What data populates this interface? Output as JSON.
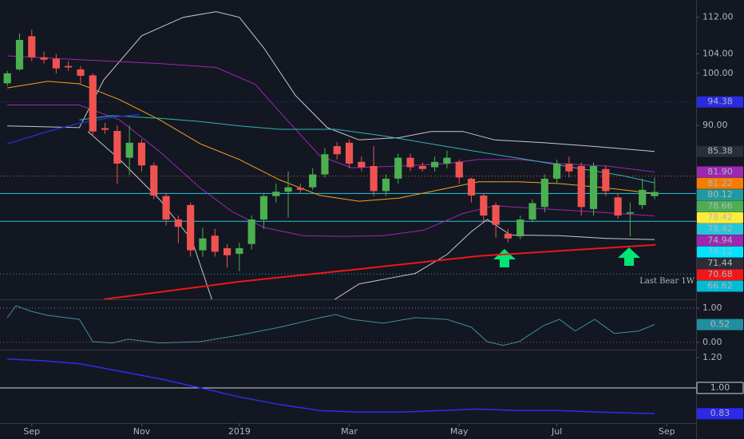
{
  "chart_data": [
    {
      "type": "candlestick",
      "log": true,
      "ylim": [
        63.3,
        116.0
      ],
      "yticks": [
        {
          "value": 112,
          "label": "112.00"
        },
        {
          "value": 104,
          "label": "104.00"
        },
        {
          "value": 100,
          "label": "100.00"
        },
        {
          "value": 90,
          "label": "90.00"
        }
      ],
      "xlim": [
        -0.6,
        56.4
      ],
      "xticks": [
        {
          "value": 2,
          "label": "Sep"
        },
        {
          "value": 11,
          "label": "Nov"
        },
        {
          "value": 19,
          "label": "2019"
        },
        {
          "value": 28,
          "label": "Mar"
        },
        {
          "value": 37,
          "label": "May"
        },
        {
          "value": 45,
          "label": "Jul"
        },
        {
          "value": 54,
          "label": "Sep"
        }
      ],
      "up_color": "#4caf50",
      "down_color": "#ef5350",
      "open": [
        98,
        100.8,
        107.8,
        103.3,
        103,
        101.5,
        100.8,
        99.6,
        89.5,
        89,
        84.3,
        86.9,
        83,
        78,
        74.4,
        76.6,
        69.9,
        72,
        70.2,
        69.4,
        70.8,
        74.4,
        78,
        78.7,
        79.3,
        79.4,
        81.5,
        86.3,
        86.9,
        83.6,
        82.9,
        78.8,
        80.8,
        84.3,
        82.9,
        82.7,
        83.3,
        83.6,
        80.8,
        78.1,
        76.6,
        72.3,
        71.9,
        74.4,
        76.3,
        80.8,
        83.3,
        82.9,
        76,
        82.4,
        77.8,
        75.3,
        76.6,
        78.0
      ],
      "high": [
        100.5,
        108.4,
        109.2,
        104.5,
        104,
        102.5,
        101.5,
        100,
        90.5,
        90,
        90,
        87.5,
        83.5,
        78.5,
        75,
        77,
        73.2,
        73,
        70.8,
        71,
        75,
        78.5,
        80,
        82,
        80,
        82.5,
        86,
        87,
        87.5,
        84.5,
        86.3,
        81.5,
        85,
        85,
        83.5,
        84.5,
        85.5,
        84,
        81,
        78.5,
        77,
        73,
        75,
        77.5,
        81.5,
        84,
        84.5,
        83.5,
        83.5,
        83,
        78.5,
        77,
        80.8,
        81
      ],
      "low": [
        97.5,
        100.5,
        102.5,
        102,
        100,
        100.5,
        98,
        88,
        88.5,
        80,
        81.4,
        82,
        77.5,
        73.5,
        70.9,
        69,
        69,
        69,
        67.5,
        67,
        70,
        73,
        77,
        74.7,
        78.5,
        79,
        81,
        84,
        82.5,
        82,
        78,
        78,
        80,
        82,
        82,
        82,
        82.5,
        80,
        77,
        74,
        71.7,
        71,
        71.5,
        74,
        75.5,
        80,
        81,
        75,
        75,
        78,
        74.5,
        71.9,
        76,
        77.5
      ],
      "close": [
        100,
        107,
        103.3,
        102.8,
        101,
        101.2,
        99.5,
        88.9,
        89.2,
        83.3,
        86.9,
        83,
        78.1,
        74.4,
        73.3,
        69.9,
        71.6,
        69.7,
        69.2,
        70.2,
        74.4,
        78,
        78.7,
        79.4,
        79,
        81.5,
        84.9,
        84.9,
        83.3,
        82.7,
        78.8,
        80.8,
        84.3,
        82.7,
        82.4,
        83.6,
        84.3,
        81,
        78.1,
        75,
        73.6,
        71.6,
        74.4,
        76.9,
        80.8,
        83.3,
        82,
        76.3,
        82.9,
        78.8,
        75,
        75.5,
        79,
        78.66
      ],
      "overlays": [
        {
          "color": "#c8c8c8",
          "width": 1,
          "x": [
            0,
            5.9,
            7.9,
            11,
            14.4,
            17.1,
            19,
            21,
            23.6,
            26.2,
            28.8,
            32.1,
            34.7,
            37.3,
            39.9,
            43.9,
            47.8,
            53
          ],
          "values": [
            89.9,
            89.6,
            98.7,
            107.9,
            112,
            113.3,
            112,
            105.3,
            95.6,
            89.6,
            87.4,
            87.8,
            88.9,
            88.9,
            87.4,
            86.9,
            86.3,
            85.38
          ]
        },
        {
          "color": "#c8c8c8",
          "width": 1,
          "x": [
            6.6,
            9.2,
            12.5,
            15.1,
            17.1,
            21,
            25.2,
            28.8,
            33.4,
            36.0,
            38.0,
            39.3,
            41.2,
            45.2,
            49.1,
            53
          ],
          "values": [
            88.9,
            84.0,
            77.4,
            71.4,
            61.7,
            null,
            61.7,
            65.3,
            66.7,
            69.3,
            72.6,
            74.4,
            72.1,
            72.0,
            71.6,
            71.44
          ]
        },
        {
          "color": "#f7a21b",
          "width": 1,
          "x": [
            0,
            3.3,
            5.9,
            9.2,
            12.5,
            15.8,
            19,
            22.3,
            25.6,
            28.8,
            32.1,
            35.4,
            38.6,
            41.9,
            45.2,
            49.1,
            53
          ],
          "values": [
            97.1,
            98.4,
            97.9,
            94.8,
            91.0,
            86.7,
            84.0,
            80.6,
            78.1,
            77.2,
            77.7,
            79.0,
            80.3,
            80.3,
            80.0,
            79.3,
            78.42
          ]
        },
        {
          "color": "#9c27b0",
          "width": 1,
          "x": [
            0,
            5.9,
            12.5,
            17.1,
            20.3,
            22.9,
            25.6,
            28.2,
            32.1,
            36.0,
            38.6,
            41.9,
            45.2,
            49.1,
            53
          ],
          "values": [
            103.6,
            102.8,
            102.0,
            101.2,
            97.8,
            91.0,
            84.6,
            82.6,
            82.9,
            83.3,
            84.0,
            84.0,
            83.3,
            82.9,
            81.9
          ]
        },
        {
          "color": "#9c27b0",
          "width": 1,
          "x": [
            0,
            5.9,
            9.2,
            12.5,
            15.8,
            18.4,
            21,
            24.2,
            27.5,
            30.8,
            34.1,
            37.3,
            39.9,
            43.9,
            47.8,
            53
          ],
          "values": [
            93.8,
            93.8,
            91.0,
            85.3,
            79.3,
            75.6,
            73.2,
            72.0,
            71.9,
            72.0,
            72.8,
            75.3,
            76.5,
            76.0,
            75.6,
            74.94
          ]
        },
        {
          "color": "#2fb3b3",
          "width": 1,
          "x": [
            5.9,
            8.6,
            12.5,
            15.8,
            19,
            22.3,
            26.9,
            30.8,
            34.7,
            38.6,
            42.5,
            46.5,
            50.4,
            53
          ],
          "values": [
            91.0,
            91.8,
            91.3,
            90.7,
            89.9,
            89.3,
            89.3,
            88.1,
            86.7,
            85.3,
            84.0,
            82.6,
            81.3,
            80.12
          ]
        },
        {
          "color": "#2130c4",
          "width": 1.5,
          "x": [
            0,
            3.3,
            5.9,
            8.6,
            10.8
          ],
          "values": [
            86.7,
            88.9,
            90.4,
            91.5,
            92.0
          ]
        },
        {
          "color": "#f0161a",
          "width": 2,
          "x": [
            7.9,
            19,
            28.8,
            38.6,
            53.1
          ],
          "values": [
            63.3,
            65.6,
            67.3,
            69.1,
            70.68
          ]
        }
      ],
      "levels": [
        {
          "value": 94.38,
          "color": "#2a2ae0",
          "style": "dotted"
        },
        {
          "value": 81.22,
          "color": "#ff5722",
          "style": "dotted"
        },
        {
          "value": 78.42,
          "color": "#26c6da",
          "style": "solid"
        },
        {
          "value": 74.12,
          "color": "#26c6da",
          "style": "solid"
        },
        {
          "value": 66.62,
          "color": "#26a69a",
          "style": "dotted",
          "text": "Last Bear 1W"
        }
      ],
      "price_labels": [
        {
          "value": 94.38,
          "color": "#2a2ae0"
        },
        {
          "value": 85.38,
          "color": "#2a2e39"
        },
        {
          "value": 81.9,
          "label": "81.90",
          "color": "#9c27b0"
        },
        {
          "value": 81.22,
          "color": "#f57c00"
        },
        {
          "value": 80.12,
          "color": "#1f9aa0"
        },
        {
          "value": 78.66,
          "color": "#4caf50"
        },
        {
          "value": 78.42,
          "color": "#ffeb3b",
          "text_color": "#000000"
        },
        {
          "value": 78.42,
          "color": "#26c6da"
        },
        {
          "value": 74.94,
          "color": "#9c27b0"
        },
        {
          "value": 74.12,
          "color": "#00e5ff",
          "text_color": "#000000"
        },
        {
          "value": 71.44,
          "color": "#2a2e39"
        },
        {
          "value": 70.68,
          "color": "#f0161a"
        },
        {
          "value": 66.62,
          "color": "#00bcd4"
        }
      ]
    },
    {
      "type": "line",
      "xlim": [
        -0.6,
        56.4
      ],
      "ylim": [
        -0.19,
        1.21
      ],
      "yticks": [
        {
          "value": 1,
          "label": "1.00"
        },
        {
          "value": 0,
          "label": "0.00"
        }
      ],
      "levels": [
        {
          "value": 1,
          "color": "#787b86",
          "style": "dotted"
        },
        {
          "value": 0,
          "color": "#b04a4a",
          "style": "dotted"
        }
      ],
      "series": [
        {
          "color": "#3f8f99",
          "width": 1,
          "x": [
            0,
            0.7,
            1.9,
            3.3,
            5.9,
            7.0,
            8.6,
            9.9,
            12.5,
            15.8,
            19,
            22.3,
            25.6,
            26.9,
            28.2,
            30.8,
            33.4,
            36,
            38,
            39.3,
            40.6,
            41.9,
            43.9,
            45.2,
            46.5,
            48.1,
            49.7,
            51.7,
            53
          ],
          "values": [
            0.72,
            1.07,
            0.91,
            0.79,
            0.67,
            0.02,
            -0.02,
            0.09,
            -0.02,
            0.02,
            0.21,
            0.44,
            0.72,
            0.81,
            0.67,
            0.56,
            0.72,
            0.67,
            0.44,
            0.02,
            -0.09,
            0.02,
            0.49,
            0.67,
            0.33,
            0.67,
            0.26,
            0.33,
            0.52
          ]
        }
      ],
      "price_labels": [
        {
          "value": 0.52,
          "color": "#1f8fa0"
        }
      ]
    },
    {
      "type": "line",
      "xlim": [
        -0.6,
        56.4
      ],
      "ylim": [
        0.768,
        1.242
      ],
      "yticks": [
        {
          "value": 1.2,
          "label": "1.20"
        }
      ],
      "levels": [
        {
          "value": 1,
          "color": "#d1d4dc",
          "style": "solid"
        }
      ],
      "series": [
        {
          "color": "#2d2df0",
          "width": 1.5,
          "x": [
            0,
            2.7,
            5.9,
            9.2,
            12.5,
            15.8,
            19,
            22.3,
            25.6,
            28.8,
            32.1,
            35.4,
            38.6,
            41.9,
            45.2,
            48.4,
            53
          ],
          "values": [
            1.19,
            1.18,
            1.16,
            1.11,
            1.06,
            1.0,
            0.94,
            0.89,
            0.85,
            0.84,
            0.84,
            0.85,
            0.86,
            0.85,
            0.85,
            0.84,
            0.83
          ]
        }
      ],
      "price_labels": [
        {
          "value": 1,
          "label": "1.00",
          "color": "#131722",
          "border": "#d1d4dc"
        },
        {
          "value": 0.83,
          "color": "#2a2ae8"
        }
      ]
    }
  ]
}
